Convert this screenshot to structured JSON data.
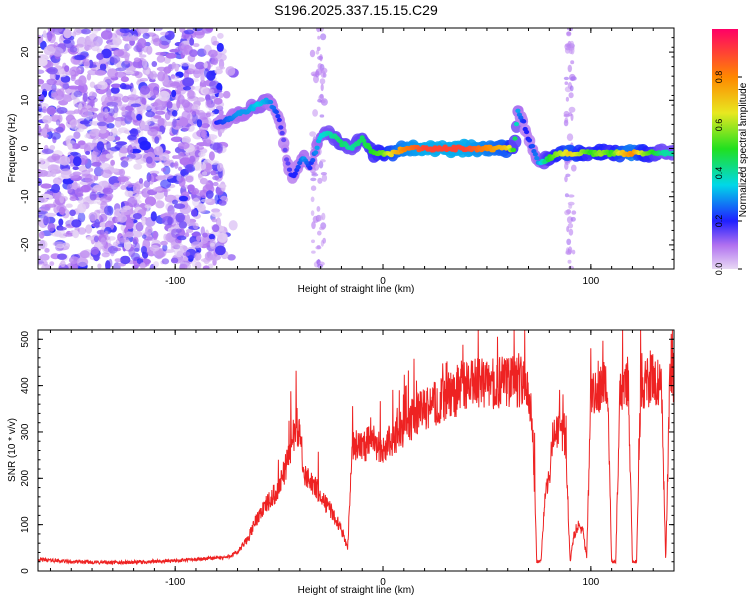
{
  "title": "S196.2025.337.15.15.C29",
  "chart_data": [
    {
      "type": "heatmap",
      "title": "S196.2025.337.15.15.C29",
      "xlabel": "Height of straight line (km)",
      "ylabel": "Frequency (Hz)",
      "xlim": [
        -166,
        140
      ],
      "ylim": [
        -25,
        25
      ],
      "xticks": [
        -100,
        0,
        100
      ],
      "yticks": [
        -20,
        -10,
        0,
        10,
        20
      ],
      "colorbar": {
        "label": "Normalized spectral amplitude",
        "range": [
          0,
          1
        ],
        "ticks": [
          0.0,
          0.2,
          0.4,
          0.6,
          0.8
        ],
        "tick_labels": [
          "0.0",
          "0.2",
          "0.4",
          "0.6",
          "0.8"
        ]
      },
      "ridge_line": {
        "x": [
          -80,
          -75,
          -70,
          -65,
          -60,
          -55,
          -52,
          -50,
          -48,
          -46,
          -44,
          -42,
          -40,
          -38,
          -35,
          -32,
          -30,
          -25,
          -20,
          -15,
          -10,
          -5,
          0,
          5,
          10,
          20,
          30,
          40,
          50,
          60,
          63,
          65,
          68,
          70,
          75,
          80,
          85,
          90,
          95,
          100,
          105,
          110,
          115,
          120,
          125,
          130,
          135,
          140
        ],
        "y": [
          5,
          6,
          7,
          8,
          9,
          10,
          8,
          6,
          2,
          -3,
          -6,
          -5,
          -3,
          -2,
          -4,
          0,
          3,
          3,
          1,
          0,
          2,
          -1,
          -1,
          -1,
          0,
          0,
          0,
          0,
          0,
          0,
          0,
          8,
          5,
          2,
          -3,
          -2,
          -1,
          -1,
          -1,
          -1,
          -1,
          -1,
          -1,
          -1,
          -1,
          -1,
          -1,
          -1
        ],
        "amplitude": [
          0.2,
          0.25,
          0.3,
          0.3,
          0.35,
          0.3,
          0.25,
          0.2,
          0.15,
          0.15,
          0.2,
          0.2,
          0.25,
          0.3,
          0.2,
          0.3,
          0.35,
          0.4,
          0.45,
          0.4,
          0.45,
          0.5,
          0.55,
          0.7,
          0.8,
          0.9,
          0.9,
          0.9,
          0.8,
          0.7,
          0.5,
          0.3,
          0.2,
          0.2,
          0.3,
          0.5,
          0.6,
          0.7,
          0.6,
          0.5,
          0.6,
          0.5,
          0.7,
          0.8,
          0.6,
          0.5,
          0.4,
          0.4
        ]
      },
      "noise_region_x": [
        -166,
        -77
      ]
    },
    {
      "type": "line",
      "xlabel": "Height of straight line (km)",
      "ylabel": "SNR (10 * v/v)",
      "xlim": [
        -166,
        140
      ],
      "ylim": [
        0,
        520
      ],
      "xticks": [
        -100,
        0,
        100
      ],
      "yticks": [
        0,
        100,
        200,
        300,
        400,
        500
      ],
      "series": [
        {
          "name": "SNR",
          "color": "#ee2222",
          "x": [
            -166,
            -150,
            -130,
            -110,
            -90,
            -75,
            -70,
            -65,
            -60,
            -55,
            -50,
            -45,
            -42,
            -40,
            -38,
            -35,
            -30,
            -25,
            -20,
            -17,
            -15,
            -12,
            -10,
            -5,
            0,
            5,
            10,
            15,
            20,
            25,
            30,
            35,
            40,
            45,
            50,
            55,
            60,
            65,
            68,
            70,
            72,
            74,
            76,
            78,
            80,
            82,
            84,
            86,
            88,
            90,
            92,
            94,
            96,
            98,
            100,
            102,
            104,
            106,
            108,
            110,
            112,
            114,
            116,
            118,
            120,
            122,
            124,
            126,
            128,
            130,
            132,
            134,
            136,
            138,
            140
          ],
          "y": [
            25,
            20,
            18,
            20,
            25,
            30,
            40,
            70,
            120,
            150,
            180,
            250,
            320,
            300,
            200,
            200,
            160,
            130,
            90,
            50,
            260,
            280,
            270,
            280,
            260,
            290,
            310,
            330,
            350,
            360,
            375,
            385,
            400,
            405,
            400,
            405,
            410,
            410,
            405,
            400,
            300,
            20,
            20,
            170,
            200,
            300,
            310,
            300,
            270,
            20,
            80,
            100,
            90,
            30,
            380,
            390,
            390,
            400,
            410,
            20,
            20,
            400,
            405,
            410,
            20,
            20,
            400,
            405,
            410,
            420,
            410,
            400,
            20,
            410,
            420
          ]
        }
      ]
    }
  ]
}
